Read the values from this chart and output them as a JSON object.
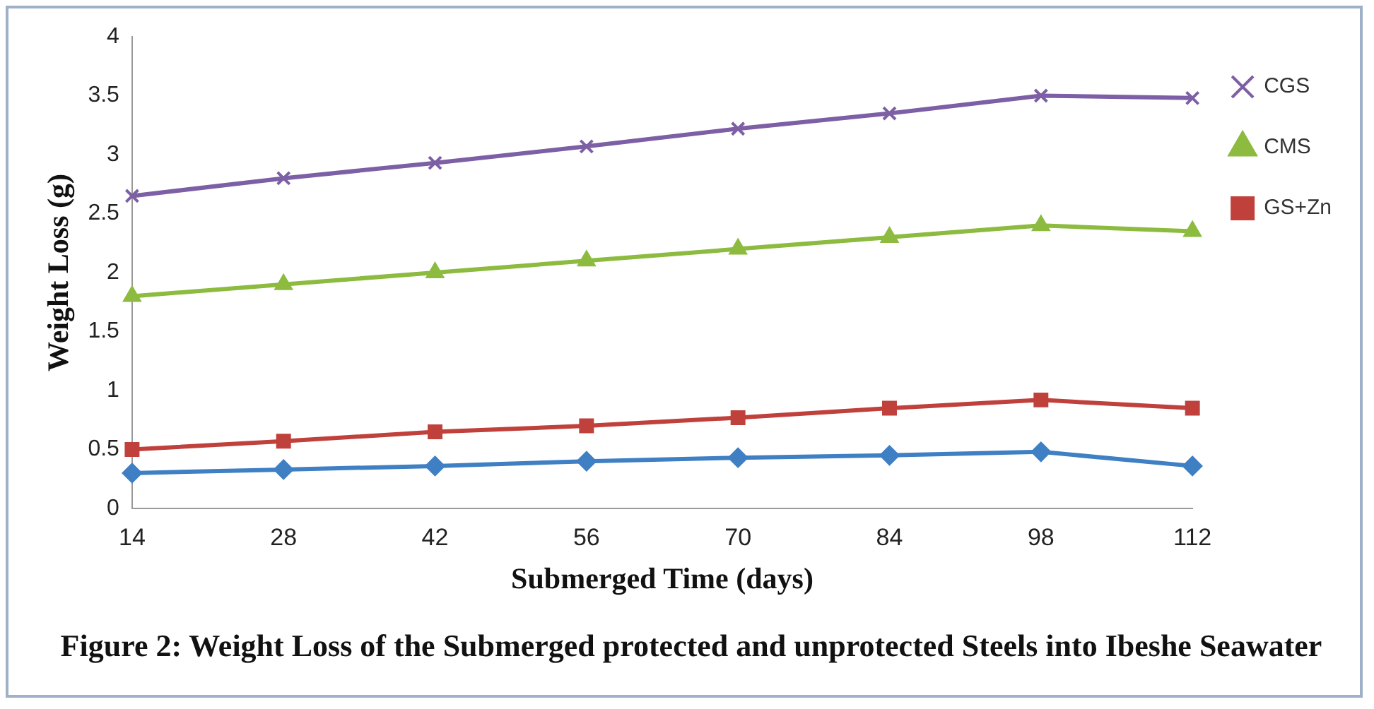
{
  "chart_data": {
    "type": "line",
    "title": "Figure 2: Weight Loss of the Submerged protected and unprotected Steels into Ibeshe Seawater",
    "xlabel": "Submerged Time (days)",
    "ylabel": "Weight Loss (g)",
    "categories": [
      "14",
      "28",
      "42",
      "56",
      "70",
      "84",
      "98",
      "112"
    ],
    "ylim": [
      0,
      4
    ],
    "yticks": [
      0,
      0.5,
      1,
      1.5,
      2,
      2.5,
      3,
      3.5,
      4
    ],
    "grid": false,
    "legend": "right",
    "line_style": "solid",
    "series": [
      {
        "name": "CGS",
        "color": "#7d5fa5",
        "marker": "cross",
        "values": [
          2.65,
          2.8,
          2.93,
          3.07,
          3.22,
          3.35,
          3.5,
          3.48
        ]
      },
      {
        "name": "CMS",
        "color": "#8cbb3f",
        "marker": "triangle",
        "values": [
          1.8,
          1.9,
          2.0,
          2.1,
          2.2,
          2.3,
          2.4,
          2.35
        ]
      },
      {
        "name": "GS+Zn",
        "color": "#c0413c",
        "marker": "square",
        "values": [
          0.5,
          0.57,
          0.65,
          0.7,
          0.77,
          0.85,
          0.92,
          0.85
        ]
      },
      {
        "color": "#3f7fc4",
        "marker": "diamond",
        "values": [
          0.3,
          0.33,
          0.36,
          0.4,
          0.43,
          0.45,
          0.48,
          0.36
        ]
      }
    ]
  }
}
